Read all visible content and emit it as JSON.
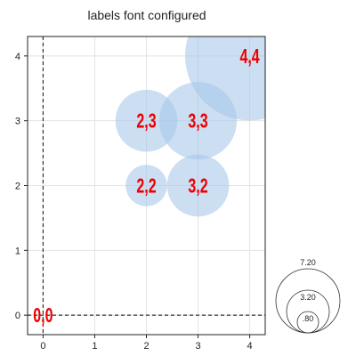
{
  "chart_data": {
    "type": "scatter",
    "title": "labels font configured",
    "xlabel": "",
    "ylabel": "",
    "xlim": [
      -0.3,
      4.3
    ],
    "ylim": [
      -0.3,
      4.3
    ],
    "x_ticks": [
      0,
      1,
      2,
      3,
      4
    ],
    "y_ticks": [
      0,
      1,
      2,
      3,
      4
    ],
    "grid": true,
    "reference_lines": {
      "x": 0,
      "y": 0,
      "style": "dashed"
    },
    "bubble_color": "#a8c8ea",
    "label_color": "#ee0000",
    "points": [
      {
        "x": 0,
        "y": 0,
        "size": 0,
        "label": "0,0"
      },
      {
        "x": 2,
        "y": 2,
        "size": 0.8,
        "label": "2,2"
      },
      {
        "x": 3,
        "y": 2,
        "size": 1.2,
        "label": "3,2"
      },
      {
        "x": 2,
        "y": 3,
        "size": 1.2,
        "label": "2,3"
      },
      {
        "x": 3,
        "y": 3,
        "size": 1.5,
        "label": "3,3"
      },
      {
        "x": 4,
        "y": 4,
        "size": 2.5,
        "label": "4,4"
      }
    ],
    "size_legend": {
      "placement": "bottom-right",
      "entries": [
        {
          "value": 7.2,
          "label": "7.20"
        },
        {
          "value": 3.2,
          "label": "3.20"
        },
        {
          "value": 0.8,
          "label": ".80"
        }
      ]
    }
  }
}
